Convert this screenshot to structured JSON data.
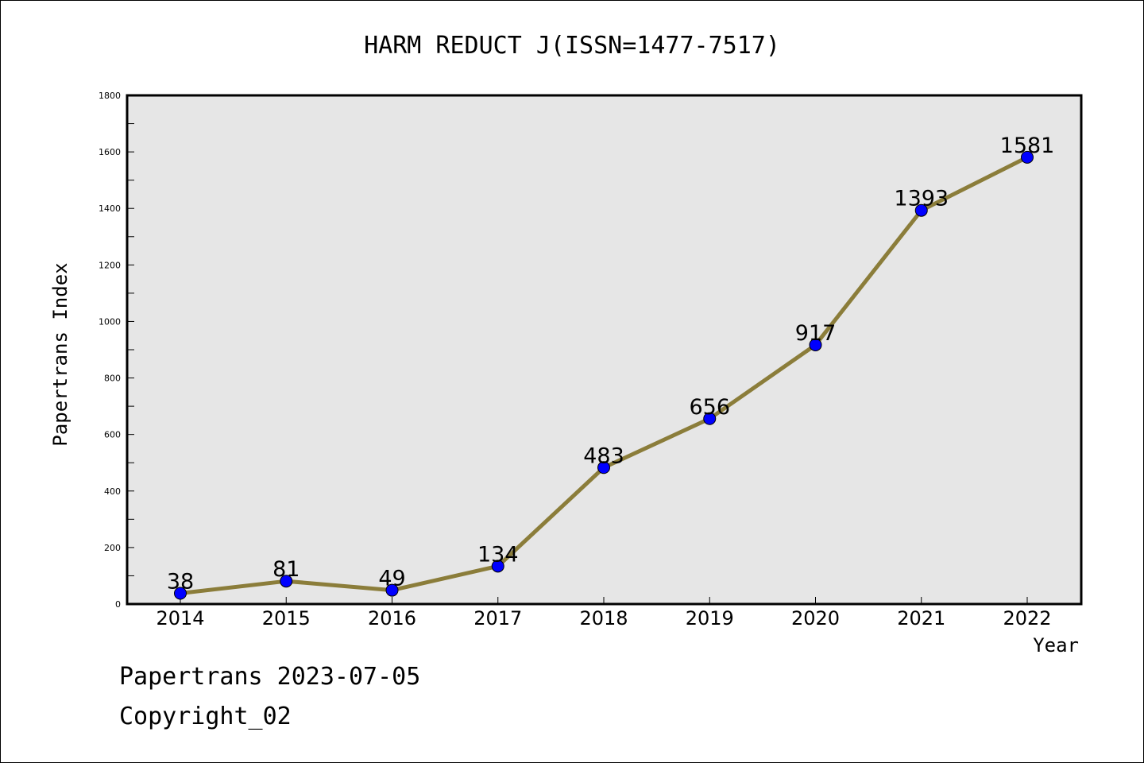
{
  "chart_data": {
    "type": "line",
    "title": "HARM REDUCT J(ISSN=1477-7517)",
    "xlabel": "Year",
    "ylabel": "Papertrans Index",
    "categories": [
      "2014",
      "2015",
      "2016",
      "2017",
      "2018",
      "2019",
      "2020",
      "2021",
      "2022"
    ],
    "series": [
      {
        "values": [
          38,
          81,
          49,
          134,
          483,
          656,
          917,
          1393,
          1581
        ]
      }
    ],
    "data_labels": [
      "38",
      "81",
      "49",
      "134",
      "483",
      "656",
      "917",
      "1393",
      "1581"
    ],
    "ylim": [
      0,
      1800
    ],
    "yticks": [
      0,
      200,
      400,
      600,
      800,
      1000,
      1200,
      1400,
      1600,
      1800
    ],
    "ytick_labels": [
      "0",
      "200",
      "400",
      "600",
      "800",
      "1000",
      "1200",
      "1400",
      "1600",
      "1800"
    ],
    "grid": false,
    "colors": {
      "line": "#8b7d3a",
      "marker": "#0000ff",
      "plot_bg": "#e6e6e6"
    }
  },
  "footer": {
    "line1": "Papertrans 2023-07-05",
    "line2": "Copyright_02"
  }
}
